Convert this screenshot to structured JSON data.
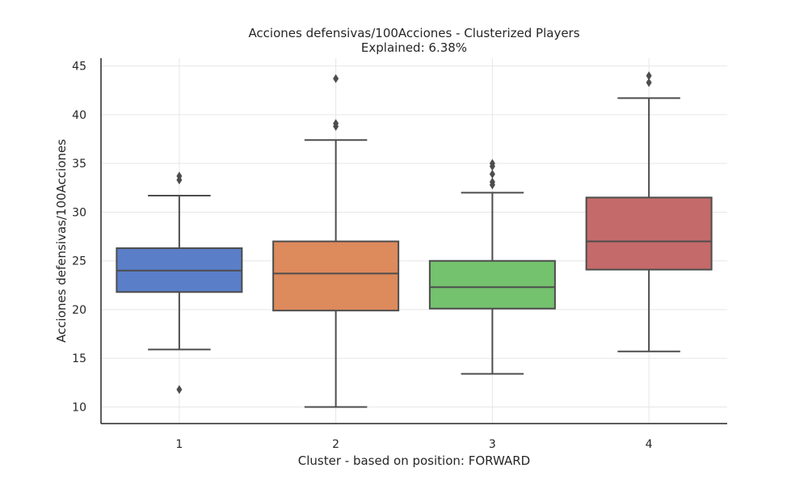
{
  "chart_data": {
    "type": "box",
    "title_lines": [
      "Acciones defensivas/100Acciones - Clusterized Players",
      "Explained: 6.38%"
    ],
    "xlabel": "Cluster - based on position: FORWARD",
    "ylabel": "Acciones defensivas/100Acciones",
    "ylim": [
      8.3,
      45.8
    ],
    "yticks": [
      10,
      15,
      20,
      25,
      30,
      35,
      40,
      45
    ],
    "categories": [
      "1",
      "2",
      "3",
      "4"
    ],
    "grid": true,
    "boxes": [
      {
        "category": "1",
        "color": "#5a7fc8",
        "whisker_low": 15.9,
        "q1": 21.8,
        "median": 24.0,
        "q3": 26.3,
        "whisker_high": 31.7,
        "outliers": [
          33.3,
          33.7,
          11.8
        ]
      },
      {
        "category": "2",
        "color": "#dd8a5c",
        "whisker_low": 10.0,
        "q1": 19.9,
        "median": 23.7,
        "q3": 27.0,
        "whisker_high": 37.4,
        "outliers": [
          38.8,
          39.1,
          43.7
        ]
      },
      {
        "category": "3",
        "color": "#74c16e",
        "whisker_low": 13.4,
        "q1": 20.1,
        "median": 22.3,
        "q3": 25.0,
        "whisker_high": 32.0,
        "outliers": [
          32.8,
          33.1,
          33.9,
          34.7,
          35.0
        ]
      },
      {
        "category": "4",
        "color": "#c46a6a",
        "whisker_low": 15.7,
        "q1": 24.1,
        "median": 27.0,
        "q3": 31.5,
        "whisker_high": 41.7,
        "outliers": [
          43.3,
          44.0
        ]
      }
    ]
  }
}
